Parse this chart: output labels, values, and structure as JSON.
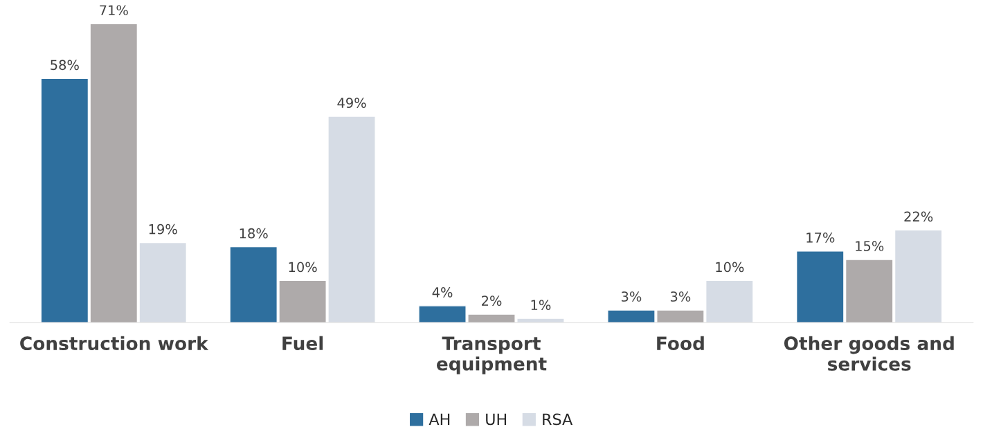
{
  "chart_data": {
    "type": "bar",
    "categories": [
      "Construction work",
      "Fuel",
      "Transport\nequipment",
      "Food",
      "Other goods and\nservices"
    ],
    "series": [
      {
        "name": "AH",
        "color": "#2e6f9e",
        "values": [
          58,
          18,
          4,
          3,
          17
        ],
        "value_labels": [
          "58%",
          "18%",
          "4%",
          "3%",
          "17%"
        ]
      },
      {
        "name": "UH",
        "color": "#aeaaaa",
        "values": [
          71,
          10,
          2,
          3,
          15
        ],
        "value_labels": [
          "71%",
          "10%",
          "2%",
          "3%",
          "15%"
        ]
      },
      {
        "name": "RSA",
        "color": "#d6dce5",
        "values": [
          19,
          49,
          1,
          10,
          22
        ],
        "value_labels": [
          "19%",
          "49%",
          "1%",
          "10%",
          "22%"
        ]
      }
    ],
    "grid": false,
    "legend": "bottom"
  }
}
